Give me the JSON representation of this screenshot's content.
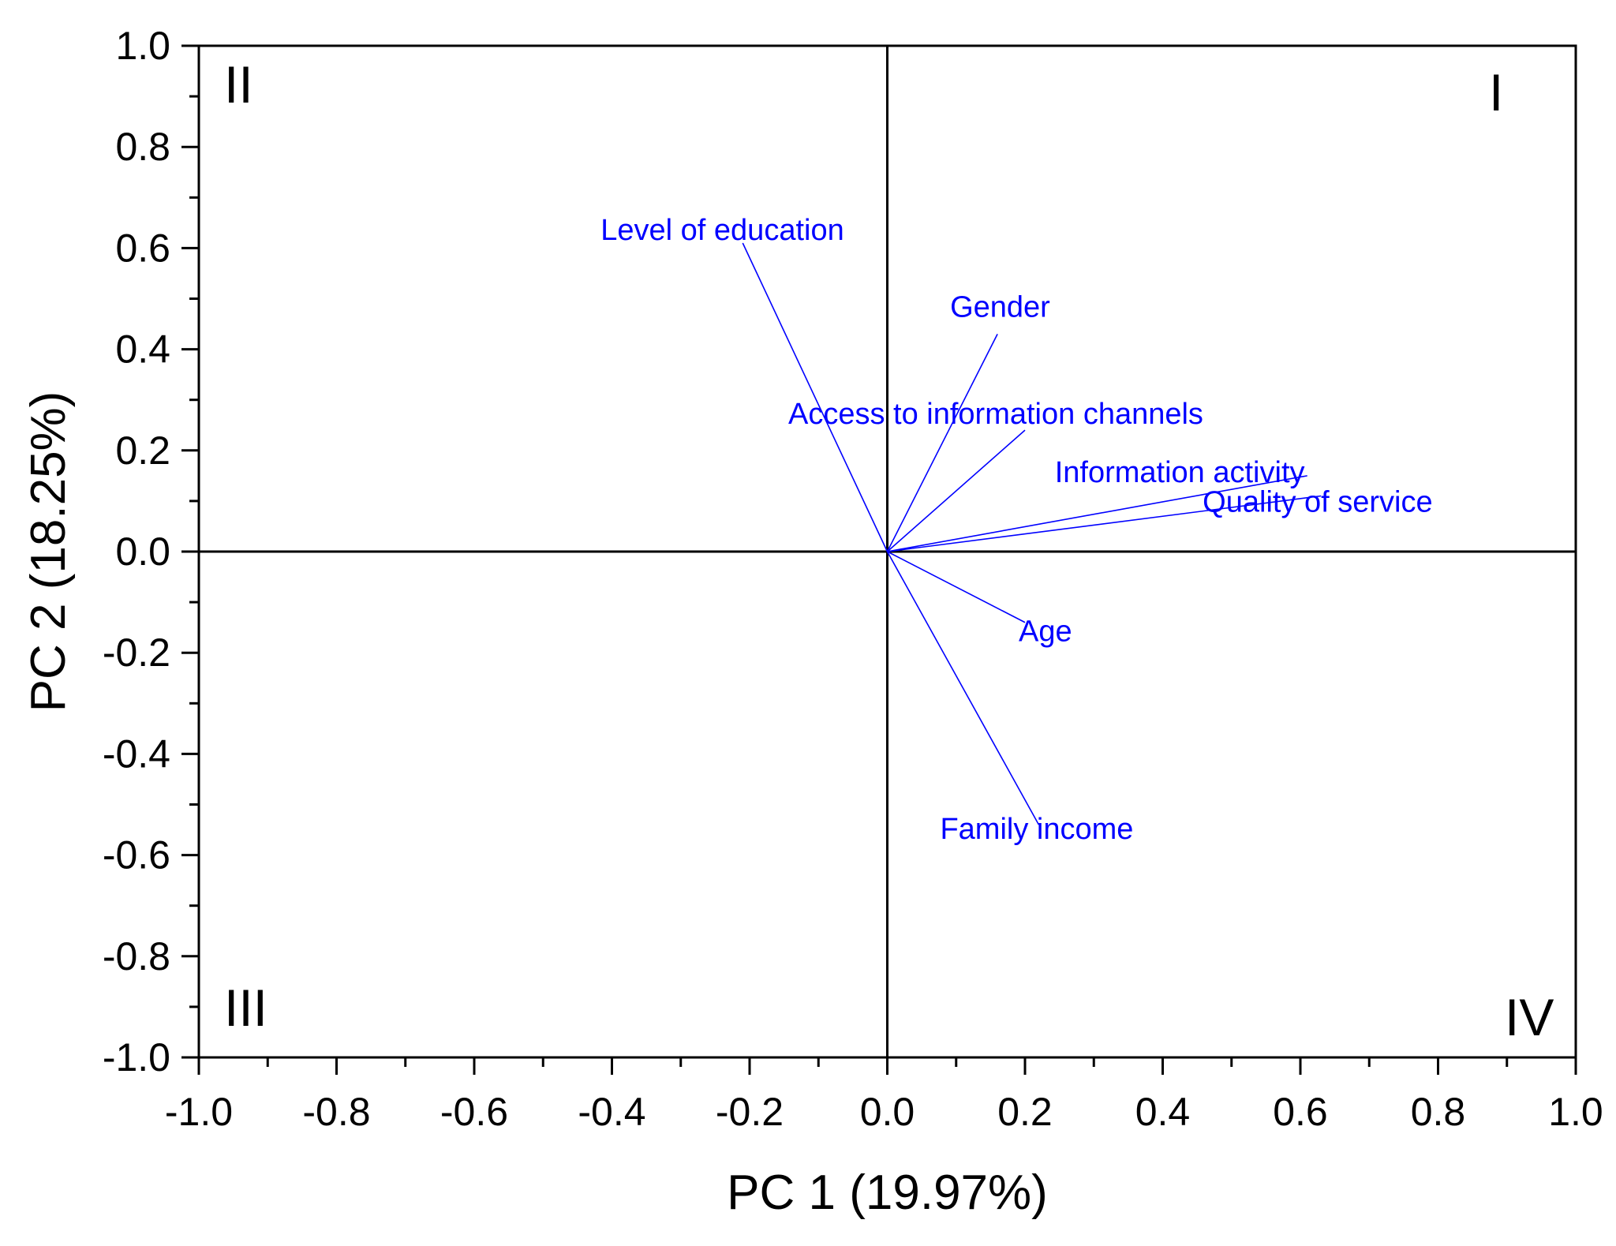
{
  "chart_data": {
    "type": "scatter",
    "subtype": "pca-loading-biplot",
    "title": "",
    "xlabel": "PC 1 (19.97%)",
    "ylabel": "PC 2 (18.25%)",
    "xlim": [
      -1.0,
      1.0
    ],
    "ylim": [
      -1.0,
      1.0
    ],
    "xticks": [
      "-1.0",
      "-0.8",
      "-0.6",
      "-0.4",
      "-0.2",
      "0.0",
      "0.2",
      "0.4",
      "0.6",
      "0.8",
      "1.0"
    ],
    "yticks": [
      "1.0",
      "0.8",
      "0.6",
      "0.4",
      "0.2",
      "0.0",
      "-0.2",
      "-0.4",
      "-0.6",
      "-0.8",
      "-1.0"
    ],
    "grid": false,
    "legend": "none",
    "color": "#0000ff",
    "quadrants": [
      {
        "label": "I",
        "corner": "top-right"
      },
      {
        "label": "II",
        "corner": "top-left"
      },
      {
        "label": "III",
        "corner": "bottom-left"
      },
      {
        "label": "IV",
        "corner": "bottom-right"
      }
    ],
    "loadings": [
      {
        "name": "Level of education",
        "x": -0.21,
        "y": 0.61
      },
      {
        "name": "Gender",
        "x": 0.16,
        "y": 0.43
      },
      {
        "name": "Access to information channels",
        "x": 0.2,
        "y": 0.24
      },
      {
        "name": "Information activity",
        "x": 0.61,
        "y": 0.15
      },
      {
        "name": "Quality of service",
        "x": 0.63,
        "y": 0.11
      },
      {
        "name": "Age",
        "x": 0.2,
        "y": -0.14
      },
      {
        "name": "Family income",
        "x": 0.22,
        "y": -0.54
      }
    ]
  }
}
